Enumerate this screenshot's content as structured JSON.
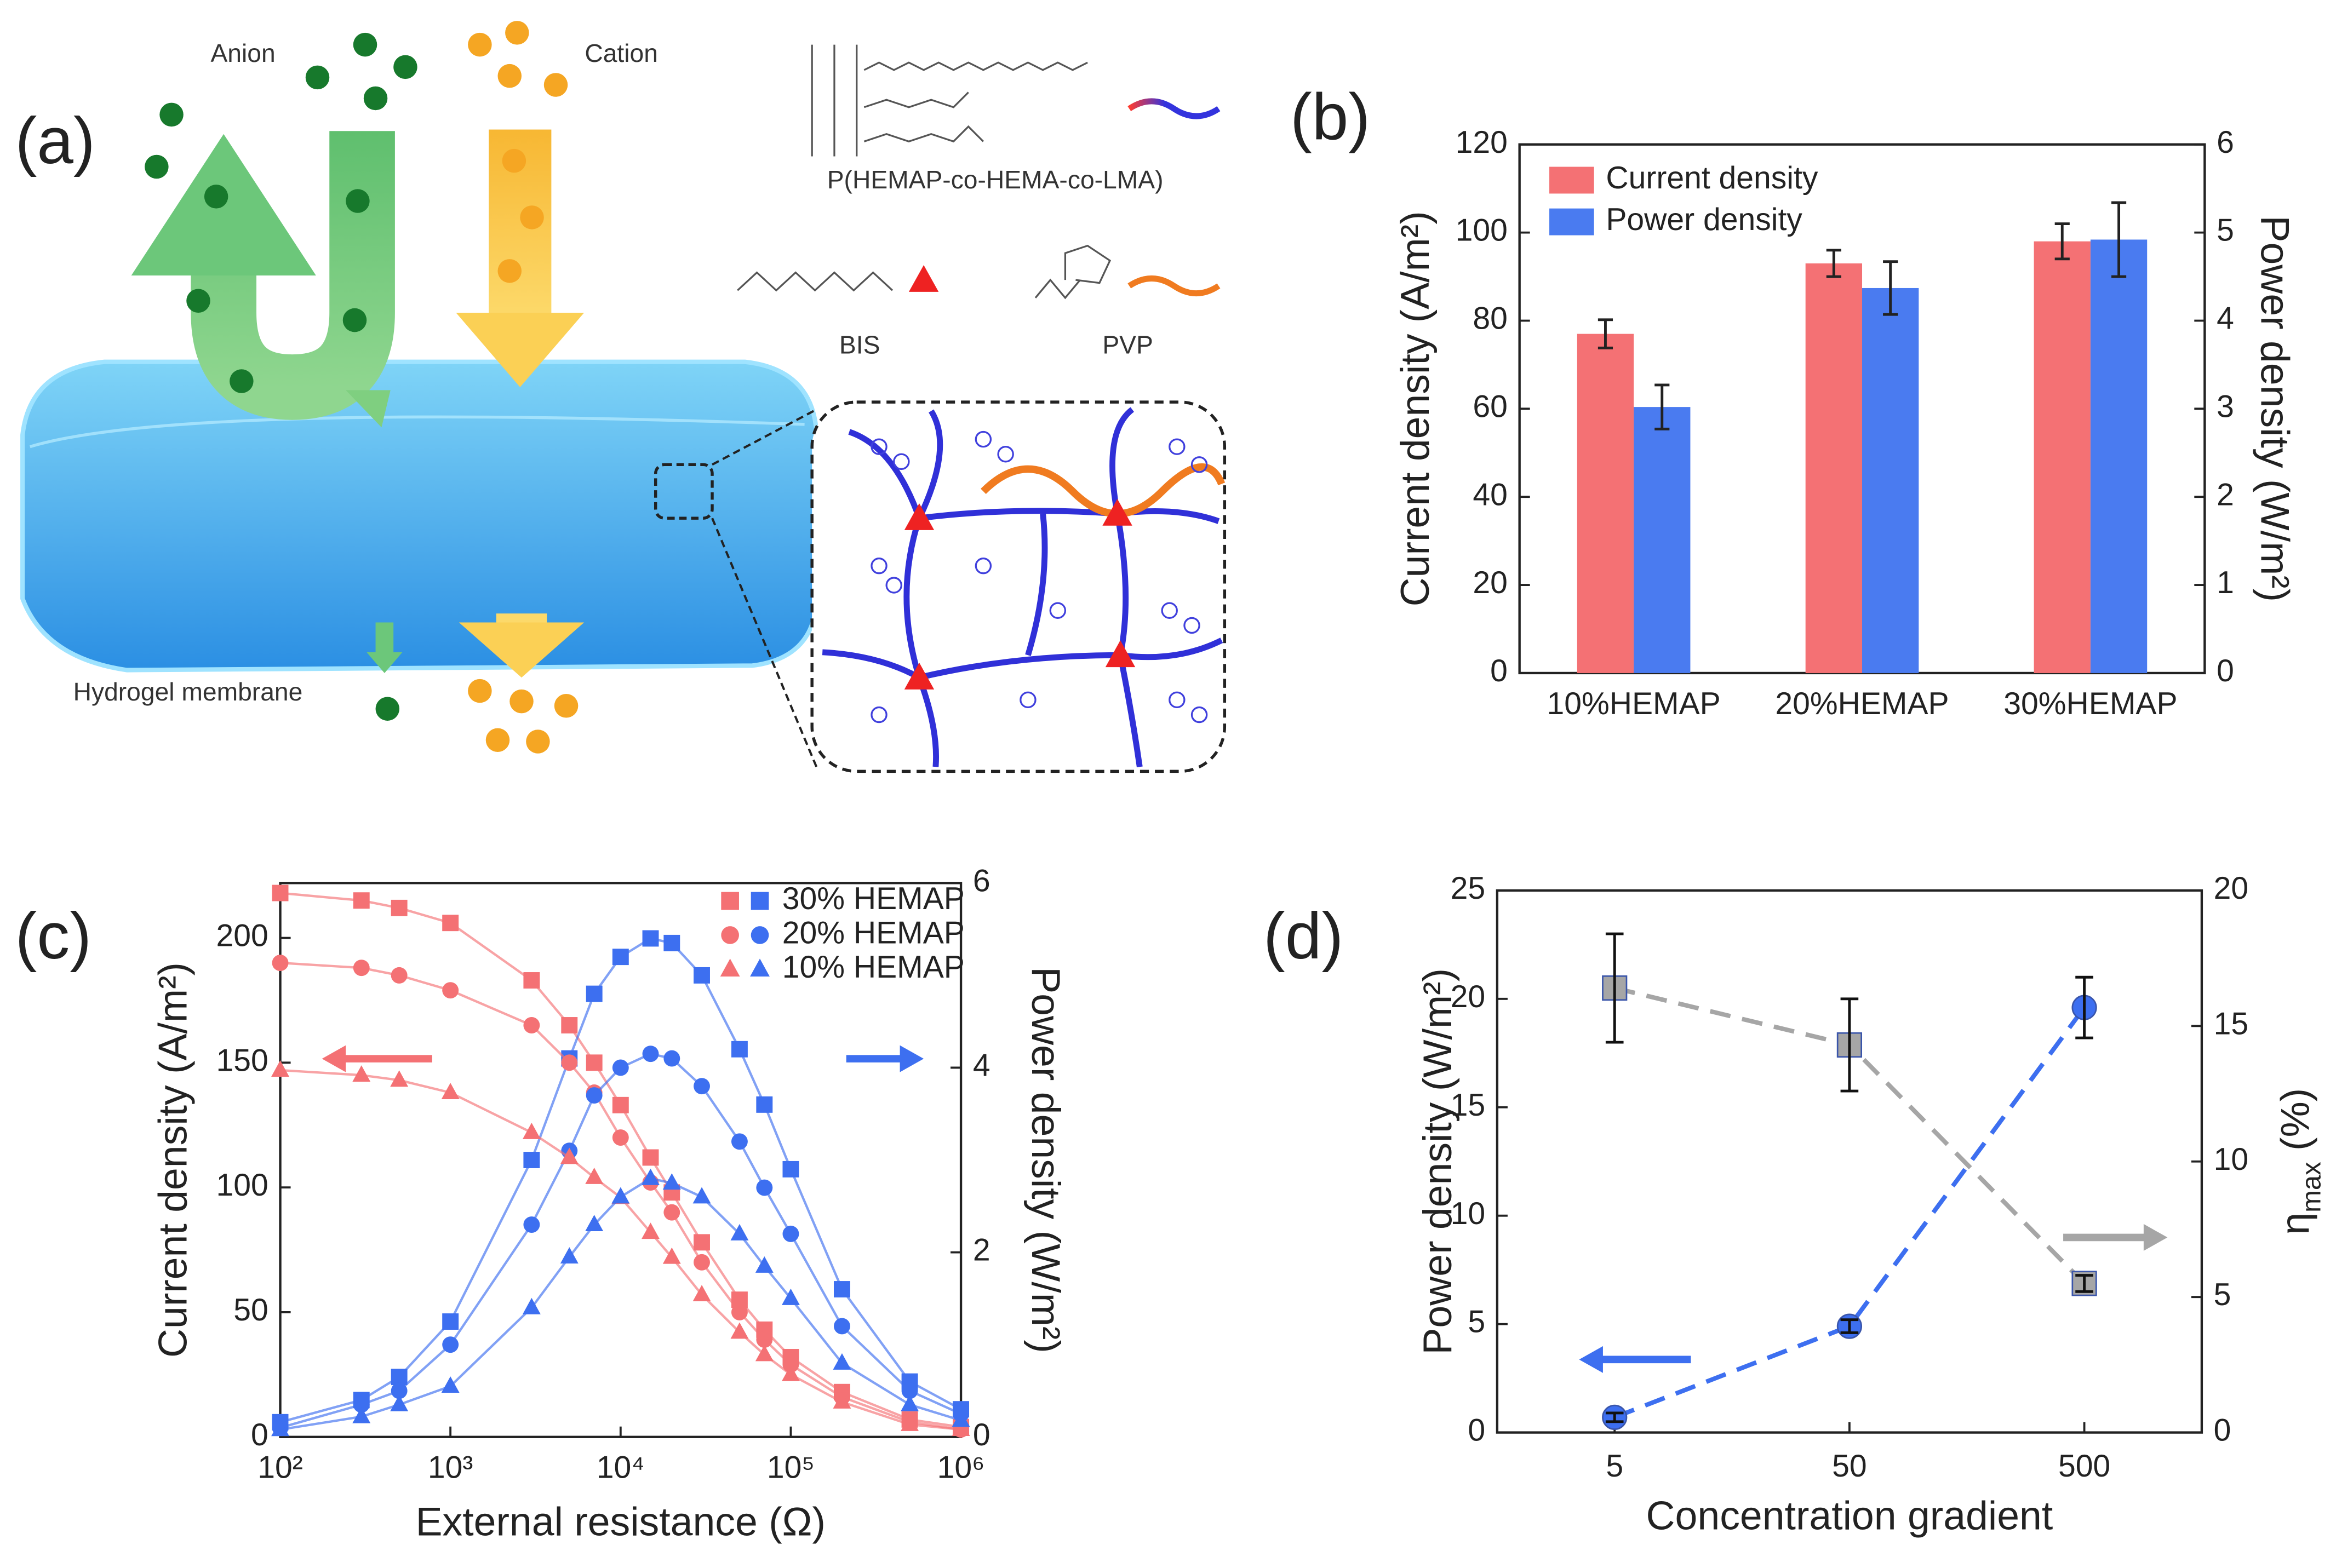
{
  "panel_labels": [
    "(a)",
    "(b)",
    "(c)",
    "(d)"
  ],
  "diagram": {
    "anion": "Anion",
    "cation": "Cation",
    "polymer": "P(HEMAP-co-HEMA-co-LMA)",
    "crosslinker": "BIS",
    "additive": "PVP",
    "membrane": "Hydrogel membrane"
  },
  "chart_data": [
    {
      "type": "bar",
      "categories": [
        "10%HEMAP",
        "20%HEMAP",
        "30%HEMAP"
      ],
      "series": [
        {
          "name": "Current density",
          "color": "#f47174",
          "values": [
            77,
            93,
            98
          ],
          "errors": [
            3.2,
            3,
            4
          ]
        },
        {
          "name": "Power density",
          "color": "#4a7bf0",
          "values": [
            3.02,
            4.37,
            4.92
          ],
          "errors": [
            0.25,
            0.3,
            0.42
          ],
          "axis": "y2"
        }
      ],
      "ylabel": "Current density (A/m²)",
      "y2label": "Power density (W/m²)",
      "ylim": [
        0,
        120
      ],
      "yticks": [
        0,
        20,
        40,
        60,
        80,
        100,
        120
      ],
      "y2lim": [
        0,
        6
      ],
      "y2ticks": [
        0,
        1,
        2,
        3,
        4,
        5,
        6
      ],
      "legend": "upper left"
    },
    {
      "type": "line",
      "xscale": "log",
      "x": [
        100,
        300,
        500,
        1000,
        3000,
        5000,
        7000,
        10000,
        15000,
        20000,
        30000,
        50000,
        70000,
        100000,
        200000,
        500000,
        1000000
      ],
      "current_color": "#f47174",
      "power_color": "#3d6ff0",
      "series": [
        {
          "name": "30% HEMAP",
          "marker": "square",
          "current_density": [
            218,
            215,
            212,
            206,
            183,
            165,
            150,
            133,
            112,
            98,
            78,
            55,
            43,
            32,
            18,
            7,
            4
          ],
          "power_density": [
            0.16,
            0.4,
            0.65,
            1.25,
            3.0,
            4.1,
            4.8,
            5.2,
            5.4,
            5.35,
            5.0,
            4.2,
            3.6,
            2.9,
            1.6,
            0.6,
            0.3
          ]
        },
        {
          "name": "20% HEMAP",
          "marker": "circle",
          "current_density": [
            190,
            188,
            185,
            179,
            165,
            150,
            138,
            120,
            102,
            90,
            70,
            50,
            39,
            29,
            16,
            6,
            3
          ],
          "power_density": [
            0.1,
            0.35,
            0.5,
            1.0,
            2.3,
            3.1,
            3.7,
            4.0,
            4.15,
            4.1,
            3.8,
            3.2,
            2.7,
            2.2,
            1.2,
            0.5,
            0.25
          ]
        },
        {
          "name": "10% HEMAP",
          "marker": "triangle",
          "current_density": [
            147,
            145,
            143,
            138,
            122,
            112,
            104,
            96,
            82,
            72,
            57,
            42,
            33,
            25,
            14,
            5,
            3
          ],
          "power_density": [
            0.08,
            0.22,
            0.35,
            0.55,
            1.4,
            1.95,
            2.3,
            2.6,
            2.8,
            2.75,
            2.6,
            2.2,
            1.85,
            1.5,
            0.8,
            0.35,
            0.18
          ]
        }
      ],
      "xlabel": "External resistance (Ω)",
      "ylabel": "Current density (A/m²)",
      "y2label": "Power density (W/m²)",
      "xlim": [
        100,
        1000000
      ],
      "xticks": [
        {
          "value": 100,
          "label": "10²"
        },
        {
          "value": 1000,
          "label": "10³"
        },
        {
          "value": 10000,
          "label": "10⁴"
        },
        {
          "value": 100000,
          "label": "10⁵"
        },
        {
          "value": 1000000,
          "label": "10⁶"
        }
      ],
      "ylim": [
        0,
        222
      ],
      "yticks": [
        0,
        50,
        100,
        150,
        200
      ],
      "y2lim": [
        0,
        6
      ],
      "y2ticks": [
        0,
        2,
        4,
        6
      ],
      "legend": "upper right"
    },
    {
      "type": "line",
      "categories": [
        "5",
        "50",
        "500"
      ],
      "series": [
        {
          "color": "#3d6ff0",
          "marker": "circle",
          "values": [
            0.7,
            4.9,
            19.6
          ],
          "errors": [
            0.2,
            0.3,
            1.4
          ]
        },
        {
          "color": "#a6a6a6",
          "marker": "square",
          "values": [
            16.4,
            14.3,
            5.5
          ],
          "errors": [
            2,
            1.7,
            0.3
          ],
          "axis": "y2"
        }
      ],
      "xlabel": "Concentration gradient",
      "ylabel": "Power density (W/m²)",
      "y2label": [
        "η",
        "max",
        " (%)"
      ],
      "ylim": [
        0,
        25
      ],
      "yticks": [
        0,
        5,
        10,
        15,
        20,
        25
      ],
      "y2lim": [
        0,
        20
      ],
      "y2ticks": [
        0,
        5,
        10,
        15,
        20
      ]
    }
  ]
}
